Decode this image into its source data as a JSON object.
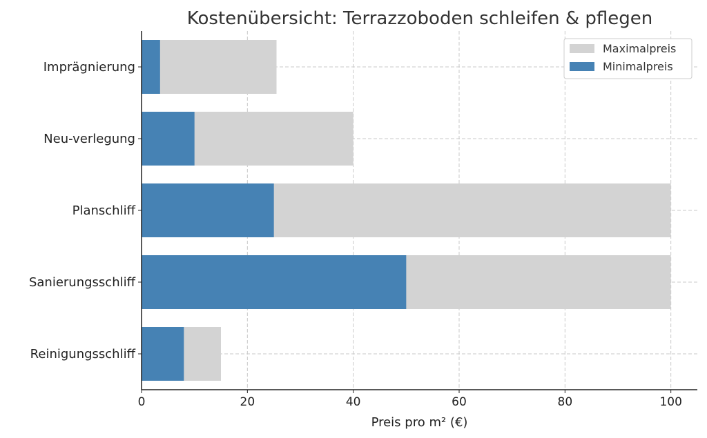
{
  "chart_data": {
    "type": "bar",
    "orientation": "horizontal",
    "title": "Kostenübersicht: Terrazzoboden schleifen & pflegen",
    "xlabel": "Preis pro m² (€)",
    "ylabel": "",
    "xlim": [
      0,
      105
    ],
    "xticks": [
      0,
      20,
      40,
      60,
      80,
      100
    ],
    "grid": true,
    "legend_position": "top-right",
    "categories": [
      "Imprägnierung",
      "Neu-verlegung",
      "Planschliff",
      "Sanierungsschliff",
      "Reinigungsschliff"
    ],
    "series": [
      {
        "name": "Maximalpreis",
        "color": "#d3d3d3",
        "values": [
          25.5,
          40,
          100,
          100,
          15
        ]
      },
      {
        "name": "Minimalpreis",
        "color": "#4682b4",
        "values": [
          3.5,
          10,
          25,
          50,
          8
        ]
      }
    ]
  }
}
